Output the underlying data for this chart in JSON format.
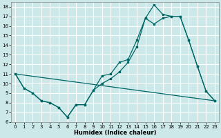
{
  "xlabel": "Humidex (Indice chaleur)",
  "bg_color": "#cce8e8",
  "grid_color": "#ffffff",
  "line_color": "#006666",
  "xlim": [
    -0.5,
    23.5
  ],
  "ylim": [
    6,
    18.5
  ],
  "yticks": [
    6,
    7,
    8,
    9,
    10,
    11,
    12,
    13,
    14,
    15,
    16,
    17,
    18
  ],
  "xticks": [
    0,
    1,
    2,
    3,
    4,
    5,
    6,
    7,
    8,
    9,
    10,
    11,
    12,
    13,
    14,
    15,
    16,
    17,
    18,
    19,
    20,
    21,
    22,
    23
  ],
  "line1_x": [
    0,
    1,
    2,
    3,
    4,
    5,
    6,
    7,
    8,
    9,
    10,
    11,
    12,
    13,
    14,
    15,
    16,
    17,
    18,
    19,
    20,
    21,
    22,
    23
  ],
  "line1_y": [
    11.0,
    9.5,
    9.0,
    8.2,
    8.0,
    7.5,
    6.5,
    7.8,
    7.8,
    9.3,
    10.8,
    11.0,
    12.2,
    12.5,
    14.5,
    16.8,
    18.2,
    17.2,
    17.0,
    17.0,
    14.5,
    11.8,
    9.2,
    8.2
  ],
  "line2_x": [
    0,
    1,
    2,
    3,
    4,
    5,
    6,
    7,
    8,
    9,
    10,
    11,
    12,
    13,
    14,
    15,
    16,
    17,
    18,
    19,
    20,
    21,
    22,
    23
  ],
  "line2_y": [
    11.0,
    9.5,
    9.0,
    8.2,
    8.0,
    7.5,
    6.5,
    7.8,
    7.8,
    9.3,
    10.0,
    10.5,
    11.2,
    12.2,
    13.8,
    16.8,
    16.2,
    16.8,
    17.0,
    17.0,
    14.5,
    11.8,
    9.2,
    8.2
  ],
  "line3_x": [
    0,
    23
  ],
  "line3_y": [
    11.0,
    8.2
  ]
}
